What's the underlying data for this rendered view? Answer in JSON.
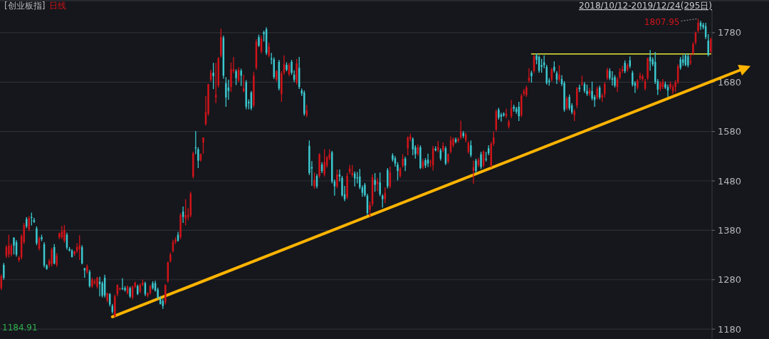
{
  "chart_data": {
    "type": "candlestick",
    "title": "[创业板指]",
    "subtitle": "日线",
    "annotations": [
      "1807.95",
      "2018/10/12-2019/12/24(295日)",
      "1184.91"
    ],
    "categories": [
      null,
      null,
      null,
      null,
      null,
      null,
      null,
      null,
      null,
      null,
      null,
      null,
      null,
      null,
      null,
      null,
      null,
      null,
      null,
      null,
      null,
      null,
      null,
      null,
      null,
      null,
      null,
      null,
      null,
      null,
      null,
      null,
      null,
      null,
      null,
      null,
      null,
      null,
      null,
      null,
      null,
      null,
      null,
      null,
      null,
      null,
      null,
      null,
      null,
      null,
      null,
      null,
      null,
      null,
      null,
      null,
      null,
      null,
      null,
      null,
      null,
      null,
      null,
      null,
      null,
      null,
      null,
      null,
      null,
      null,
      null,
      null,
      null,
      null,
      null,
      null,
      null,
      null,
      null,
      null,
      null,
      null,
      null,
      null,
      null,
      null,
      null,
      null,
      null,
      null,
      null,
      null,
      null,
      null,
      null,
      null,
      null,
      null,
      null,
      null,
      null,
      null,
      null,
      null,
      null,
      null,
      null,
      null,
      null,
      null,
      null,
      null,
      null,
      null,
      null,
      null,
      null,
      null,
      null,
      null,
      null,
      null,
      null,
      null,
      null,
      null,
      null,
      null,
      null,
      null,
      null,
      null,
      null,
      null,
      null,
      null,
      null,
      null,
      null,
      null,
      null,
      null,
      null,
      null,
      null,
      null,
      null,
      null,
      null,
      null,
      null,
      null,
      null,
      null,
      null,
      null,
      null,
      null,
      null,
      null,
      null,
      null,
      null,
      null,
      null,
      null,
      null,
      null,
      null,
      null,
      null,
      null,
      null,
      null,
      null,
      null,
      null,
      null,
      null,
      null,
      null,
      null,
      null,
      null,
      null,
      null,
      null,
      null,
      null,
      null,
      null,
      null,
      null,
      null,
      null,
      null,
      null,
      null,
      null,
      null,
      null,
      null,
      null,
      null,
      null,
      null,
      null,
      null,
      null,
      null,
      null,
      null,
      null,
      null,
      null,
      null,
      null,
      null,
      null,
      null,
      null,
      null,
      null,
      null,
      null,
      null,
      null,
      null,
      null,
      null,
      null,
      null,
      null,
      null,
      null,
      null,
      null,
      null,
      null,
      null,
      null,
      null,
      null,
      null,
      null,
      null,
      null,
      null,
      null,
      null,
      null,
      null,
      null,
      null,
      null,
      null,
      null,
      null,
      null,
      null,
      null,
      null,
      null,
      null,
      null,
      null,
      null,
      null,
      null,
      null,
      null,
      null,
      null,
      null,
      null,
      null,
      null,
      null,
      null,
      null,
      null,
      null
    ],
    "ohlc": [
      [
        1263,
        1291,
        1259,
        1287
      ],
      [
        1310,
        1314,
        1280,
        1284
      ],
      [
        1328,
        1350,
        1324,
        1346
      ],
      [
        1331,
        1371,
        1325,
        1349
      ],
      [
        1331,
        1353,
        1327,
        1349
      ],
      [
        1365,
        1366,
        1331,
        1349
      ],
      [
        1356,
        1360,
        1327,
        1331
      ],
      [
        1320,
        1328,
        1316,
        1325
      ],
      [
        1325,
        1372,
        1321,
        1368
      ],
      [
        1356,
        1395,
        1352,
        1391
      ],
      [
        1403,
        1407,
        1384,
        1388
      ],
      [
        1382,
        1409,
        1378,
        1405
      ],
      [
        1407,
        1416,
        1390,
        1405
      ],
      [
        1401,
        1405,
        1395,
        1397
      ],
      [
        1384,
        1388,
        1350,
        1354
      ],
      [
        1343,
        1368,
        1339,
        1364
      ],
      [
        1366,
        1371,
        1358,
        1362
      ],
      [
        1352,
        1356,
        1305,
        1309
      ],
      [
        1309,
        1311,
        1300,
        1302
      ],
      [
        1310,
        1322,
        1305,
        1318
      ],
      [
        1312,
        1345,
        1307,
        1341
      ],
      [
        1346,
        1352,
        1311,
        1313
      ],
      [
        1310,
        1334,
        1306,
        1329
      ],
      [
        1366,
        1375,
        1362,
        1374
      ],
      [
        1366,
        1389,
        1362,
        1378
      ],
      [
        1359,
        1391,
        1355,
        1381
      ],
      [
        1371,
        1375,
        1341,
        1345
      ],
      [
        1342,
        1346,
        1337,
        1339
      ],
      [
        1339,
        1342,
        1325,
        1326
      ],
      [
        1332,
        1339,
        1328,
        1337
      ],
      [
        1338,
        1354,
        1334,
        1346
      ],
      [
        1342,
        1370,
        1320,
        1349
      ],
      [
        1346,
        1350,
        1311,
        1313
      ],
      [
        1303,
        1304,
        1284,
        1299
      ],
      [
        1296,
        1311,
        1292,
        1307
      ],
      [
        1296,
        1300,
        1264,
        1267
      ],
      [
        1267,
        1284,
        1263,
        1280
      ],
      [
        1273,
        1281,
        1270,
        1277
      ],
      [
        1266,
        1286,
        1262,
        1284
      ],
      [
        1276,
        1286,
        1246,
        1271
      ],
      [
        1273,
        1277,
        1244,
        1248
      ],
      [
        1284,
        1290,
        1244,
        1248
      ],
      [
        1238,
        1253,
        1234,
        1253
      ],
      [
        1251,
        1253,
        1226,
        1230
      ],
      [
        1227,
        1231,
        1211,
        1215
      ],
      [
        1205,
        1250,
        1205,
        1246
      ],
      [
        1251,
        1270,
        1246,
        1270
      ],
      [
        1261,
        1264,
        1258,
        1263
      ],
      [
        1263,
        1283,
        1259,
        1261
      ],
      [
        1263,
        1267,
        1256,
        1259
      ],
      [
        1253,
        1269,
        1250,
        1266
      ],
      [
        1263,
        1266,
        1243,
        1246
      ],
      [
        1244,
        1268,
        1240,
        1266
      ],
      [
        1266,
        1276,
        1263,
        1274
      ],
      [
        1267,
        1270,
        1249,
        1251
      ],
      [
        1256,
        1272,
        1253,
        1270
      ],
      [
        1270,
        1280,
        1267,
        1274
      ],
      [
        1273,
        1276,
        1247,
        1251
      ],
      [
        1248,
        1254,
        1244,
        1253
      ],
      [
        1253,
        1270,
        1250,
        1267
      ],
      [
        1273,
        1277,
        1260,
        1263
      ],
      [
        1273,
        1278,
        1256,
        1258
      ],
      [
        1260,
        1264,
        1241,
        1244
      ],
      [
        1241,
        1247,
        1230,
        1231
      ],
      [
        1237,
        1241,
        1221,
        1227
      ],
      [
        1234,
        1270,
        1230,
        1270
      ],
      [
        1277,
        1316,
        1274,
        1316
      ],
      [
        1318,
        1335,
        1315,
        1331
      ],
      [
        1338,
        1361,
        1335,
        1356
      ],
      [
        1356,
        1366,
        1352,
        1361
      ],
      [
        1371,
        1377,
        1357,
        1359
      ],
      [
        1366,
        1415,
        1362,
        1411
      ],
      [
        1418,
        1428,
        1395,
        1407
      ],
      [
        1404,
        1443,
        1390,
        1411
      ],
      [
        1407,
        1425,
        1400,
        1411
      ],
      [
        1410,
        1458,
        1406,
        1454
      ],
      [
        1489,
        1539,
        1485,
        1536
      ],
      [
        1548,
        1581,
        1534,
        1546
      ],
      [
        1544,
        1548,
        1506,
        1521
      ],
      [
        1522,
        1536,
        1519,
        1534
      ],
      [
        1558,
        1568,
        1535,
        1568
      ],
      [
        1595,
        1652,
        1592,
        1619
      ],
      [
        1616,
        1676,
        1612,
        1676
      ],
      [
        1685,
        1705,
        1681,
        1699
      ],
      [
        1699,
        1719,
        1666,
        1692
      ],
      [
        1649,
        1719,
        1637,
        1654
      ],
      [
        1673,
        1731,
        1669,
        1728
      ],
      [
        1734,
        1788,
        1730,
        1771
      ],
      [
        1770,
        1774,
        1687,
        1693
      ],
      [
        1678,
        1690,
        1630,
        1649
      ],
      [
        1669,
        1685,
        1644,
        1662
      ],
      [
        1670,
        1720,
        1660,
        1706
      ],
      [
        1702,
        1731,
        1698,
        1706
      ],
      [
        1702,
        1706,
        1674,
        1688
      ],
      [
        1683,
        1710,
        1680,
        1705
      ],
      [
        1703,
        1707,
        1672,
        1693
      ],
      [
        1662,
        1695,
        1659,
        1667
      ],
      [
        1680,
        1684,
        1625,
        1630
      ],
      [
        1640,
        1645,
        1625,
        1637
      ],
      [
        1659,
        1662,
        1623,
        1627
      ],
      [
        1633,
        1701,
        1629,
        1693
      ],
      [
        1709,
        1767,
        1705,
        1762
      ],
      [
        1771,
        1776,
        1751,
        1754
      ],
      [
        1742,
        1774,
        1738,
        1768
      ],
      [
        1781,
        1784,
        1762,
        1777
      ],
      [
        1787,
        1791,
        1735,
        1739
      ],
      [
        1734,
        1760,
        1730,
        1752
      ],
      [
        1728,
        1739,
        1716,
        1726
      ],
      [
        1726,
        1730,
        1686,
        1690
      ],
      [
        1685,
        1704,
        1681,
        1702
      ],
      [
        1721,
        1725,
        1663,
        1667
      ],
      [
        1656,
        1702,
        1640,
        1698
      ],
      [
        1699,
        1734,
        1695,
        1716
      ],
      [
        1715,
        1720,
        1702,
        1705
      ],
      [
        1696,
        1719,
        1692,
        1715
      ],
      [
        1721,
        1725,
        1695,
        1699
      ],
      [
        1695,
        1704,
        1680,
        1685
      ],
      [
        1679,
        1727,
        1675,
        1718
      ],
      [
        1709,
        1731,
        1666,
        1670
      ],
      [
        1663,
        1667,
        1652,
        1657
      ],
      [
        1659,
        1663,
        1612,
        1616
      ],
      [
        1613,
        1634,
        1609,
        1623
      ],
      [
        1551,
        1562,
        1492,
        1496
      ],
      [
        1508,
        1520,
        1470,
        1505
      ],
      [
        1469,
        1497,
        1464,
        1482
      ],
      [
        1490,
        1494,
        1465,
        1469
      ],
      [
        1490,
        1536,
        1486,
        1534
      ],
      [
        1513,
        1518,
        1496,
        1500
      ],
      [
        1493,
        1544,
        1489,
        1518
      ],
      [
        1511,
        1530,
        1507,
        1528
      ],
      [
        1526,
        1544,
        1522,
        1534
      ],
      [
        1538,
        1541,
        1475,
        1479
      ],
      [
        1479,
        1483,
        1450,
        1469
      ],
      [
        1469,
        1503,
        1465,
        1493
      ],
      [
        1493,
        1503,
        1479,
        1489
      ],
      [
        1486,
        1490,
        1448,
        1451
      ],
      [
        1453,
        1470,
        1439,
        1443
      ],
      [
        1447,
        1496,
        1443,
        1490
      ],
      [
        1498,
        1512,
        1494,
        1505
      ],
      [
        1492,
        1512,
        1488,
        1496
      ],
      [
        1495,
        1499,
        1469,
        1485
      ],
      [
        1487,
        1498,
        1475,
        1485
      ],
      [
        1489,
        1504,
        1463,
        1467
      ],
      [
        1467,
        1471,
        1448,
        1456
      ],
      [
        1472,
        1476,
        1448,
        1451
      ],
      [
        1450,
        1454,
        1411,
        1415
      ],
      [
        1421,
        1438,
        1408,
        1431
      ],
      [
        1433,
        1493,
        1429,
        1487
      ],
      [
        1482,
        1496,
        1458,
        1472
      ],
      [
        1474,
        1486,
        1459,
        1479
      ],
      [
        1477,
        1497,
        1449,
        1453
      ],
      [
        1450,
        1453,
        1426,
        1443
      ],
      [
        1443,
        1467,
        1435,
        1456
      ],
      [
        1502,
        1506,
        1465,
        1469
      ],
      [
        1469,
        1509,
        1465,
        1497
      ],
      [
        1532,
        1536,
        1519,
        1523
      ],
      [
        1526,
        1530,
        1509,
        1515
      ],
      [
        1513,
        1518,
        1481,
        1500
      ],
      [
        1490,
        1508,
        1486,
        1505
      ],
      [
        1511,
        1534,
        1507,
        1525
      ],
      [
        1525,
        1529,
        1500,
        1511
      ],
      [
        1546,
        1570,
        1532,
        1568
      ],
      [
        1565,
        1576,
        1560,
        1570
      ],
      [
        1565,
        1568,
        1532,
        1544
      ],
      [
        1548,
        1552,
        1525,
        1534
      ],
      [
        1535,
        1554,
        1531,
        1548
      ],
      [
        1548,
        1552,
        1504,
        1506
      ],
      [
        1508,
        1524,
        1504,
        1519
      ],
      [
        1522,
        1526,
        1506,
        1511
      ],
      [
        1523,
        1535,
        1508,
        1515
      ],
      [
        1518,
        1523,
        1508,
        1519
      ],
      [
        1512,
        1551,
        1501,
        1546
      ],
      [
        1545,
        1550,
        1540,
        1542
      ],
      [
        1542,
        1561,
        1538,
        1549
      ],
      [
        1542,
        1546,
        1521,
        1525
      ],
      [
        1542,
        1558,
        1538,
        1551
      ],
      [
        1546,
        1550,
        1512,
        1515
      ],
      [
        1519,
        1536,
        1515,
        1534
      ],
      [
        1539,
        1570,
        1535,
        1562
      ],
      [
        1552,
        1568,
        1548,
        1565
      ],
      [
        1564,
        1568,
        1556,
        1559
      ],
      [
        1561,
        1568,
        1557,
        1565
      ],
      [
        1568,
        1602,
        1564,
        1580
      ],
      [
        1577,
        1581,
        1567,
        1571
      ],
      [
        1562,
        1578,
        1558,
        1574
      ],
      [
        1539,
        1560,
        1535,
        1557
      ],
      [
        1552,
        1562,
        1528,
        1532
      ],
      [
        1500,
        1521,
        1474,
        1508
      ],
      [
        1521,
        1525,
        1496,
        1500
      ],
      [
        1512,
        1527,
        1508,
        1523
      ],
      [
        1534,
        1539,
        1504,
        1508
      ],
      [
        1511,
        1542,
        1507,
        1539
      ],
      [
        1525,
        1539,
        1519,
        1523
      ],
      [
        1546,
        1552,
        1532,
        1536
      ],
      [
        1511,
        1559,
        1507,
        1555
      ],
      [
        1555,
        1580,
        1551,
        1568
      ],
      [
        1584,
        1625,
        1580,
        1621
      ],
      [
        1624,
        1628,
        1604,
        1608
      ],
      [
        1614,
        1618,
        1600,
        1610
      ],
      [
        1616,
        1619,
        1610,
        1613
      ],
      [
        1611,
        1626,
        1607,
        1616
      ],
      [
        1590,
        1604,
        1586,
        1600
      ],
      [
        1611,
        1644,
        1607,
        1627
      ],
      [
        1630,
        1634,
        1620,
        1626
      ],
      [
        1626,
        1630,
        1616,
        1620
      ],
      [
        1630,
        1640,
        1601,
        1611
      ],
      [
        1613,
        1656,
        1609,
        1652
      ],
      [
        1656,
        1666,
        1652,
        1662
      ],
      [
        1654,
        1673,
        1650,
        1669
      ],
      [
        1683,
        1708,
        1679,
        1689
      ],
      [
        1699,
        1703,
        1679,
        1692
      ],
      [
        1702,
        1735,
        1698,
        1732
      ],
      [
        1734,
        1738,
        1716,
        1725
      ],
      [
        1731,
        1734,
        1699,
        1703
      ],
      [
        1714,
        1727,
        1699,
        1711
      ],
      [
        1720,
        1734,
        1708,
        1714
      ],
      [
        1711,
        1715,
        1675,
        1678
      ],
      [
        1683,
        1688,
        1673,
        1680
      ],
      [
        1685,
        1709,
        1681,
        1706
      ],
      [
        1711,
        1722,
        1699,
        1703
      ],
      [
        1698,
        1702,
        1676,
        1685
      ],
      [
        1685,
        1714,
        1681,
        1695
      ],
      [
        1686,
        1694,
        1672,
        1676
      ],
      [
        1678,
        1682,
        1620,
        1624
      ],
      [
        1627,
        1651,
        1623,
        1647
      ],
      [
        1650,
        1655,
        1623,
        1627
      ],
      [
        1633,
        1637,
        1615,
        1619
      ],
      [
        1613,
        1625,
        1601,
        1621
      ],
      [
        1633,
        1670,
        1627,
        1667
      ],
      [
        1669,
        1675,
        1660,
        1666
      ],
      [
        1676,
        1693,
        1672,
        1678
      ],
      [
        1676,
        1680,
        1658,
        1662
      ],
      [
        1662,
        1675,
        1652,
        1656
      ],
      [
        1656,
        1668,
        1652,
        1663
      ],
      [
        1662,
        1681,
        1643,
        1647
      ],
      [
        1650,
        1654,
        1630,
        1644
      ],
      [
        1649,
        1671,
        1645,
        1667
      ],
      [
        1669,
        1673,
        1645,
        1649
      ],
      [
        1649,
        1657,
        1640,
        1653
      ],
      [
        1656,
        1680,
        1649,
        1676
      ],
      [
        1688,
        1709,
        1684,
        1705
      ],
      [
        1703,
        1708,
        1684,
        1688
      ],
      [
        1688,
        1702,
        1673,
        1685
      ],
      [
        1690,
        1694,
        1669,
        1673
      ],
      [
        1670,
        1690,
        1660,
        1686
      ],
      [
        1690,
        1708,
        1686,
        1701
      ],
      [
        1702,
        1713,
        1698,
        1706
      ],
      [
        1719,
        1724,
        1698,
        1702
      ],
      [
        1705,
        1718,
        1701,
        1714
      ],
      [
        1724,
        1732,
        1708,
        1712
      ],
      [
        1699,
        1703,
        1671,
        1675
      ],
      [
        1678,
        1682,
        1658,
        1673
      ],
      [
        1669,
        1686,
        1665,
        1683
      ],
      [
        1688,
        1699,
        1684,
        1693
      ],
      [
        1686,
        1696,
        1682,
        1692
      ],
      [
        1667,
        1686,
        1663,
        1682
      ],
      [
        1688,
        1730,
        1684,
        1728
      ],
      [
        1731,
        1745,
        1703,
        1722
      ],
      [
        1726,
        1730,
        1712,
        1716
      ],
      [
        1721,
        1741,
        1676,
        1680
      ],
      [
        1682,
        1686,
        1654,
        1665
      ],
      [
        1666,
        1682,
        1662,
        1678
      ],
      [
        1670,
        1686,
        1666,
        1680
      ],
      [
        1676,
        1681,
        1666,
        1669
      ],
      [
        1670,
        1675,
        1650,
        1663
      ],
      [
        1669,
        1681,
        1665,
        1676
      ],
      [
        1662,
        1675,
        1656,
        1670
      ],
      [
        1670,
        1684,
        1660,
        1680
      ],
      [
        1680,
        1716,
        1676,
        1712
      ],
      [
        1726,
        1731,
        1705,
        1709
      ],
      [
        1726,
        1735,
        1713,
        1719
      ],
      [
        1734,
        1738,
        1712,
        1715
      ],
      [
        1732,
        1737,
        1710,
        1714
      ],
      [
        1719,
        1737,
        1715,
        1722
      ],
      [
        1738,
        1761,
        1734,
        1757
      ],
      [
        1760,
        1782,
        1756,
        1780
      ],
      [
        1784,
        1807.95,
        1780,
        1800
      ],
      [
        1800,
        1804,
        1786,
        1793
      ],
      [
        1796,
        1800,
        1787,
        1791
      ],
      [
        1793,
        1800,
        1767,
        1771
      ],
      [
        1764,
        1777,
        1732,
        1735
      ],
      [
        1742,
        1770,
        1738,
        1767
      ]
    ],
    "series": [
      {
        "type": "line",
        "color": "#ffb400",
        "values": [
          null,
          null,
          null,
          null,
          null,
          null,
          null,
          null,
          null,
          null,
          null,
          null,
          null,
          null,
          null,
          null,
          null,
          null,
          null,
          null,
          null,
          null,
          null,
          null,
          null,
          null,
          null,
          null,
          null,
          null,
          null,
          null,
          null,
          null,
          null,
          null,
          null,
          null,
          null,
          null,
          null,
          null,
          null,
          null,
          1205,
          null,
          null,
          null,
          null,
          null,
          null,
          null,
          null,
          null,
          null,
          null,
          null,
          null,
          null,
          null,
          null,
          null,
          null,
          null,
          null,
          null,
          null,
          null,
          null,
          null,
          null,
          null,
          null,
          null,
          null,
          null,
          null,
          null,
          null,
          null,
          null,
          null,
          null,
          null,
          null,
          null,
          null,
          null,
          null,
          null,
          null,
          null,
          null,
          null,
          null,
          null,
          null,
          null,
          null,
          null,
          null,
          null,
          null,
          null,
          null,
          null,
          null,
          null,
          null,
          null,
          null,
          null,
          null,
          null,
          null,
          null,
          null,
          null,
          null,
          null,
          null,
          null,
          null,
          null,
          null,
          null,
          null,
          null,
          null,
          null,
          null,
          null,
          null,
          null,
          null,
          null,
          null,
          null,
          null,
          null,
          null,
          null,
          null,
          null,
          null,
          null,
          null,
          null,
          null,
          null,
          null,
          null,
          null,
          null,
          null,
          null,
          null,
          null,
          null,
          null,
          null,
          null,
          null,
          null,
          null,
          null,
          null,
          null,
          null,
          null,
          null,
          null,
          null,
          null,
          null,
          null,
          null,
          null,
          null,
          null,
          null,
          null,
          null,
          null,
          null,
          null,
          null,
          null,
          null,
          null,
          null,
          null,
          null,
          null,
          null,
          null,
          null,
          null,
          null,
          null,
          null,
          null,
          null,
          null,
          null,
          null,
          null,
          null,
          null,
          null,
          null,
          null,
          null,
          null,
          null,
          null,
          null,
          null,
          null,
          null,
          null,
          null,
          null,
          null,
          null,
          null,
          null,
          null,
          null,
          null,
          null,
          null,
          null,
          null,
          null,
          null,
          null,
          null,
          null,
          null,
          null,
          null,
          null,
          null,
          null,
          null,
          null,
          null,
          null,
          null,
          null,
          null,
          null,
          null,
          null,
          null,
          null,
          null,
          null,
          null,
          null,
          null,
          null,
          null,
          null,
          null,
          null,
          null,
          null,
          null,
          null,
          null,
          null,
          null,
          null,
          null,
          null,
          null,
          null,
          null,
          null,
          1681
        ]
      },
      {
        "type": "line",
        "color": "#e8e83a",
        "values": [
          null,
          null,
          null,
          null,
          null,
          null,
          null,
          null,
          null,
          null,
          null,
          null,
          null,
          null,
          null,
          null,
          null,
          null,
          null,
          null,
          null,
          null,
          null,
          null,
          null,
          null,
          null,
          null,
          null,
          null,
          null,
          null,
          null,
          null,
          null,
          null,
          null,
          null,
          null,
          null,
          null,
          null,
          null,
          null,
          null,
          null,
          null,
          null,
          null,
          null,
          null,
          null,
          null,
          null,
          null,
          null,
          null,
          null,
          null,
          null,
          null,
          null,
          null,
          null,
          null,
          null,
          null,
          null,
          null,
          null,
          null,
          null,
          null,
          null,
          null,
          null,
          null,
          null,
          null,
          null,
          null,
          null,
          null,
          null,
          null,
          null,
          null,
          null,
          null,
          null,
          null,
          null,
          null,
          null,
          null,
          null,
          null,
          null,
          null,
          null,
          null,
          null,
          null,
          null,
          null,
          null,
          null,
          null,
          null,
          null,
          null,
          null,
          null,
          null,
          null,
          null,
          null,
          null,
          null,
          null,
          null,
          null,
          null,
          null,
          null,
          null,
          null,
          null,
          null,
          null,
          null,
          null,
          null,
          null,
          null,
          null,
          null,
          null,
          null,
          null,
          null,
          null,
          null,
          null,
          null,
          null,
          null,
          null,
          null,
          null,
          null,
          null,
          null,
          null,
          null,
          null,
          null,
          null,
          null,
          null,
          null,
          null,
          null,
          null,
          null,
          null,
          null,
          null,
          null,
          null,
          null,
          null,
          null,
          null,
          null,
          null,
          null,
          null,
          null,
          null,
          null,
          null,
          null,
          null,
          null,
          null,
          null,
          null,
          null,
          null,
          null,
          null,
          null,
          null,
          null,
          null,
          null,
          null,
          null,
          null,
          null,
          null,
          null,
          null,
          null,
          null,
          null,
          null,
          null,
          null,
          1737,
          null,
          null,
          null,
          null,
          null,
          null,
          null,
          null,
          null,
          null,
          null,
          null,
          null,
          null,
          null,
          null,
          null,
          null,
          null,
          null,
          null,
          null,
          null,
          null,
          null,
          null,
          null,
          null,
          null,
          null,
          null,
          null,
          null,
          null,
          null,
          null,
          null,
          null,
          null,
          null,
          null,
          null,
          null,
          null,
          null,
          null,
          null,
          null,
          null,
          null,
          null,
          null,
          null,
          null,
          null,
          null,
          null,
          null,
          null,
          null,
          null,
          null,
          null,
          null,
          null,
          null,
          null,
          null,
          null,
          null,
          1737
        ]
      }
    ],
    "ylim": [
      1160,
      1826
    ],
    "yticks": [
      1180,
      1280,
      1380,
      1480,
      1580,
      1680,
      1780
    ],
    "grid": "y",
    "tick_labels": "y"
  }
}
